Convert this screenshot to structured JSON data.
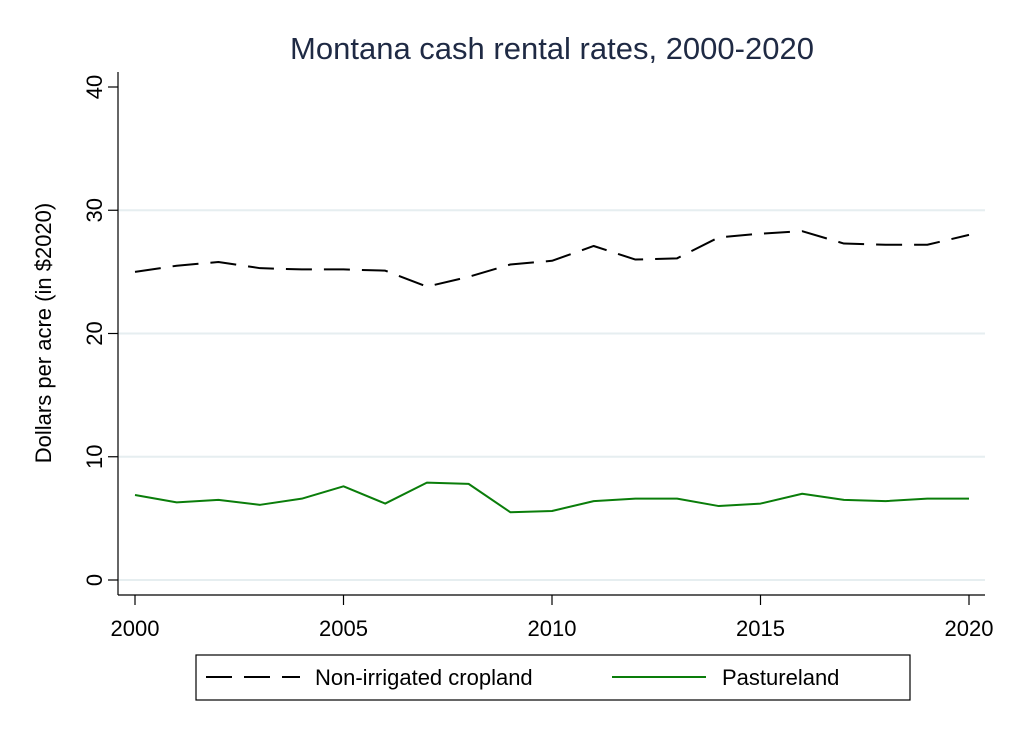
{
  "chart_data": {
    "type": "line",
    "title": "Montana cash rental rates, 2000-2020",
    "xlabel": "",
    "ylabel": "Dollars per acre (in $2020)",
    "xlim": [
      2000,
      2020
    ],
    "ylim": [
      0,
      40
    ],
    "xticks": [
      2000,
      2005,
      2010,
      2015,
      2020
    ],
    "yticks": [
      0,
      10,
      20,
      30,
      40
    ],
    "grid": "horizontal",
    "legend_position": "bottom",
    "x": [
      2000,
      2001,
      2002,
      2003,
      2004,
      2005,
      2006,
      2007,
      2008,
      2009,
      2010,
      2011,
      2012,
      2013,
      2014,
      2015,
      2016,
      2017,
      2018,
      2019,
      2020
    ],
    "series": [
      {
        "name": "Non-irrigated cropland",
        "color": "#000000",
        "dash": "dashed",
        "values": [
          25.0,
          25.5,
          25.8,
          25.3,
          25.2,
          25.2,
          25.1,
          23.8,
          24.6,
          25.6,
          25.9,
          27.1,
          26.0,
          26.1,
          27.8,
          28.1,
          28.3,
          27.3,
          27.2,
          27.2,
          28.0
        ]
      },
      {
        "name": "Pastureland",
        "color": "#0a7d0a",
        "dash": "solid",
        "values": [
          6.9,
          6.3,
          6.5,
          6.1,
          6.6,
          7.6,
          6.2,
          7.9,
          7.8,
          5.5,
          5.6,
          6.4,
          6.6,
          6.6,
          6.0,
          6.2,
          7.0,
          6.5,
          6.4,
          6.6,
          6.6
        ]
      }
    ],
    "colors": {
      "title": "#1f2a44",
      "grid": "#e6eef0",
      "axis": "#000000"
    }
  }
}
